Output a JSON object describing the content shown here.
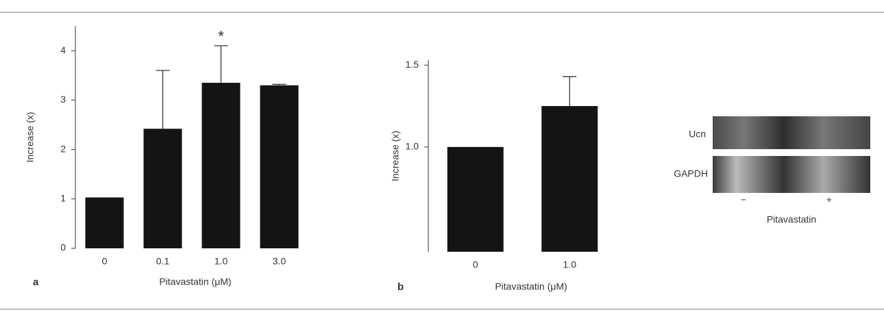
{
  "chart_data": [
    {
      "type": "bar",
      "panel": "a",
      "xlabel": "Pitavastatin (μM)",
      "ylabel": "Increase (x)",
      "categories": [
        "0",
        "0.1",
        "1.0",
        "3.0"
      ],
      "values": [
        1.03,
        2.42,
        3.35,
        3.3
      ],
      "errors": [
        0,
        1.18,
        0.75,
        0.02
      ],
      "color": "#141414",
      "ylim": [
        0,
        4.5
      ],
      "yticks": [
        0,
        1,
        2,
        3,
        4
      ],
      "annotation": "*"
    },
    {
      "type": "bar",
      "panel": "b",
      "xlabel": "Pitavastatin (μM)",
      "ylabel": "Increase (x)",
      "categories": [
        "0",
        "1.0"
      ],
      "values": [
        1.0,
        1.25
      ],
      "errors": [
        0,
        0.18
      ],
      "color": "#141414",
      "ylim": [
        0.36,
        1.53
      ],
      "yticks": [
        {
          "value": 1,
          "label": "1.0"
        },
        1.5
      ]
    }
  ],
  "blot": {
    "bands": [
      "Ucn",
      "GAPDH"
    ],
    "lanes": [
      "−",
      "+"
    ],
    "xlabel": "Pitavastatin"
  }
}
